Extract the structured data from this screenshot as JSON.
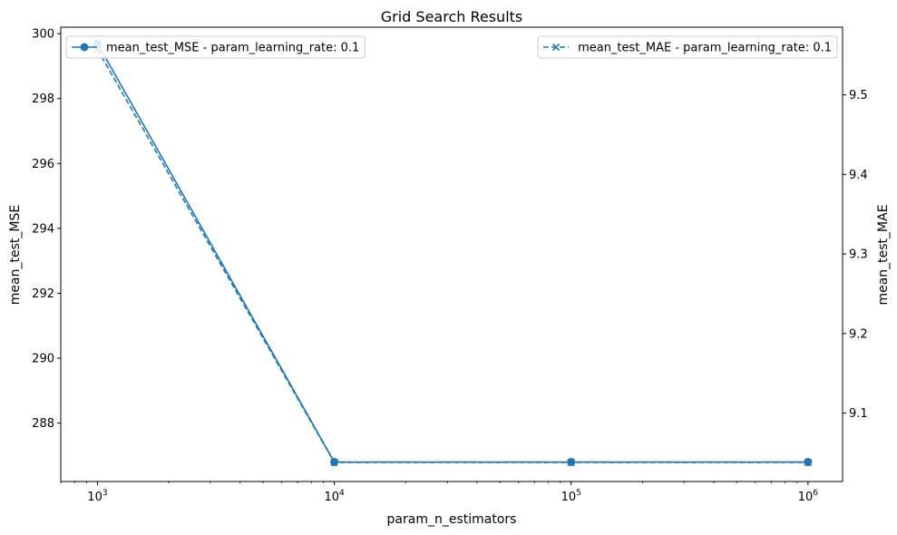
{
  "chart_data": {
    "type": "line",
    "title": "Grid Search Results",
    "xlabel": "param_n_estimators",
    "ylabel_left": "mean_test_MSE",
    "ylabel_right": "mean_test_MAE",
    "x_scale": "log",
    "xlim": [
      700,
      1400000
    ],
    "ylim_left": [
      286.2,
      300.2
    ],
    "ylim_right": [
      9.014,
      9.585
    ],
    "x_ticks": [
      1000,
      10000,
      100000,
      1000000
    ],
    "x_tick_labels": [
      {
        "base": "10",
        "exp": "3"
      },
      {
        "base": "10",
        "exp": "4"
      },
      {
        "base": "10",
        "exp": "5"
      },
      {
        "base": "10",
        "exp": "6"
      }
    ],
    "y_ticks_left": [
      288,
      290,
      292,
      294,
      296,
      298,
      300
    ],
    "y_tick_labels_left": [
      "288",
      "290",
      "292",
      "294",
      "296",
      "298",
      "300"
    ],
    "y_ticks_right": [
      9.1,
      9.2,
      9.3,
      9.4,
      9.5
    ],
    "y_tick_labels_right": [
      "9.1",
      "9.2",
      "9.3",
      "9.4",
      "9.5"
    ],
    "grid": false,
    "series": [
      {
        "name": "mean_test_MSE - param_learning_rate: 0.1",
        "axis": "left",
        "marker": "circle",
        "linestyle": "solid",
        "color": "#1f77b4",
        "x": [
          1000,
          10000,
          100000,
          1000000
        ],
        "y": [
          299.7,
          286.8,
          286.8,
          286.8
        ]
      },
      {
        "name": "mean_test_MAE - param_learning_rate: 0.1",
        "axis": "right",
        "marker": "x",
        "linestyle": "dashed",
        "color": "#1f77b4",
        "x": [
          1000,
          10000,
          100000,
          1000000
        ],
        "y": [
          9.557,
          9.038,
          9.038,
          9.038
        ]
      }
    ],
    "legends": [
      {
        "placement": "upper-left",
        "series": 0
      },
      {
        "placement": "upper-right",
        "series": 1
      }
    ]
  }
}
